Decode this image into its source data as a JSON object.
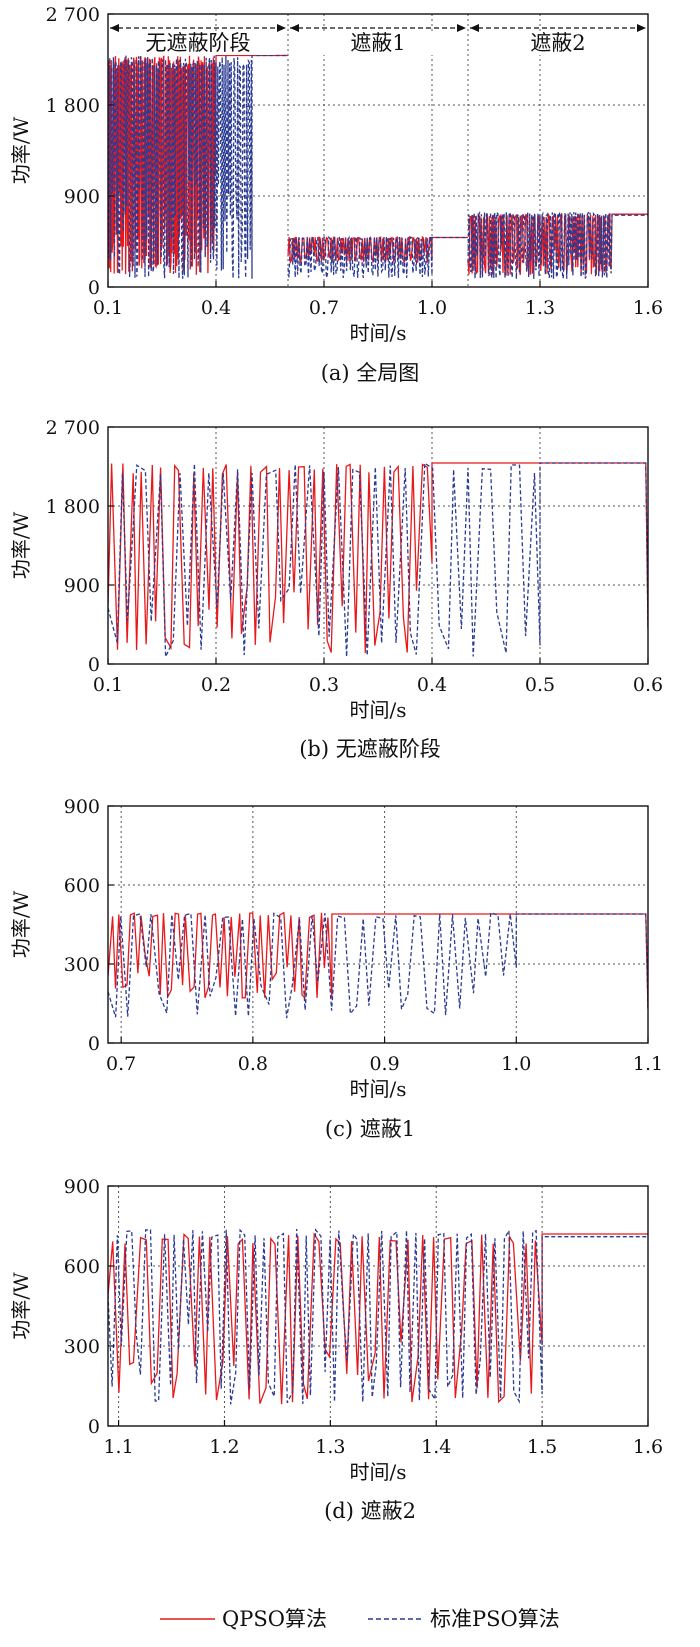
{
  "figure": {
    "legend": {
      "entries": [
        "QPSO算法",
        "标准PSO算法"
      ],
      "placement": "bottom-center"
    },
    "colors": {
      "qpso": "#e8191b",
      "pso": "#2b3a92",
      "grid": "#555555",
      "axis": "#111111"
    }
  },
  "chart_data": [
    {
      "type": "line",
      "caption": "(a) 全局图",
      "xlabel": "时间/s",
      "ylabel": "功率/W",
      "xlim": [
        0.1,
        1.6
      ],
      "ylim": [
        0,
        2700
      ],
      "xticks": [
        0.1,
        0.4,
        0.7,
        1.0,
        1.3,
        1.6
      ],
      "xtick_labels": [
        "0.1",
        "0.4",
        "0.7",
        "1.0",
        "1.3",
        "1.6"
      ],
      "yticks": [
        0,
        900,
        1800,
        2700
      ],
      "ytick_labels": [
        "0",
        "900",
        "1 800",
        "2 700"
      ],
      "grid": true,
      "phases": [
        {
          "label": "无遮蔽阶段",
          "start": 0.1,
          "end": 0.6
        },
        {
          "label": "遮蔽1",
          "start": 0.6,
          "end": 1.1
        },
        {
          "label": "遮蔽2",
          "start": 1.1,
          "end": 1.6
        }
      ],
      "series": [
        {
          "name": "QPSO算法",
          "style": "solid",
          "segments": [
            {
              "x0": 0.1,
              "x1": 0.6,
              "low": 120,
              "high": 2290,
              "converge_at": 0.4,
              "final": 2290,
              "spikes": 80,
              "seed": 11
            },
            {
              "x0": 0.6,
              "x1": 1.1,
              "low": 240,
              "high": 495,
              "converge_at": 1.0,
              "final": 490,
              "spikes": 60,
              "seed": 12
            },
            {
              "x0": 1.1,
              "x1": 1.6,
              "low": 120,
              "high": 720,
              "converge_at": 1.5,
              "final": 720,
              "spikes": 70,
              "seed": 13
            }
          ]
        },
        {
          "name": "标准PSO算法",
          "style": "dashed",
          "segments": [
            {
              "x0": 0.1,
              "x1": 0.6,
              "low": 80,
              "high": 2290,
              "converge_at": 0.5,
              "final": 2290,
              "spikes": 80,
              "seed": 21
            },
            {
              "x0": 0.6,
              "x1": 1.1,
              "low": 90,
              "high": 495,
              "converge_at": 1.0,
              "final": 490,
              "spikes": 60,
              "seed": 22
            },
            {
              "x0": 1.1,
              "x1": 1.6,
              "low": 80,
              "high": 740,
              "converge_at": 1.5,
              "final": 710,
              "spikes": 70,
              "seed": 23
            }
          ]
        }
      ]
    },
    {
      "type": "line",
      "caption": "(b) 无遮蔽阶段",
      "xlabel": "时间/s",
      "ylabel": "功率/W",
      "xlim": [
        0.1,
        0.6
      ],
      "ylim": [
        0,
        2700
      ],
      "xticks": [
        0.1,
        0.2,
        0.3,
        0.4,
        0.5,
        0.6
      ],
      "xtick_labels": [
        "0.1",
        "0.2",
        "0.3",
        "0.4",
        "0.5",
        "0.6"
      ],
      "yticks": [
        0,
        900,
        1800,
        2700
      ],
      "ytick_labels": [
        "0",
        "900",
        "1 800",
        "2 700"
      ],
      "grid": true,
      "series": [
        {
          "name": "QPSO算法",
          "style": "solid",
          "segments": [
            {
              "x0": 0.1,
              "x1": 0.6,
              "low": 120,
              "high": 2290,
              "converge_at": 0.4,
              "final": 2290,
              "spikes": 34,
              "seed": 31,
              "end_drop": 400
            }
          ]
        },
        {
          "name": "标准PSO算法",
          "style": "dashed",
          "segments": [
            {
              "x0": 0.1,
              "x1": 0.6,
              "low": 80,
              "high": 2290,
              "converge_at": 0.5,
              "final": 2290,
              "spikes": 30,
              "seed": 41,
              "end_drop": 400
            }
          ]
        }
      ]
    },
    {
      "type": "line",
      "caption": "(c) 遮蔽1",
      "xlabel": "时间/s",
      "ylabel": "功率/W",
      "xlim": [
        0.69,
        1.1
      ],
      "ylim": [
        0,
        900
      ],
      "xticks": [
        0.7,
        0.8,
        0.9,
        1.0,
        1.1
      ],
      "xtick_labels": [
        "0.7",
        "0.8",
        "0.9",
        "1.0",
        "1.1"
      ],
      "yticks": [
        0,
        300,
        600,
        900
      ],
      "ytick_labels": [
        "0",
        "300",
        "600",
        "900"
      ],
      "grid": true,
      "series": [
        {
          "name": "QPSO算法",
          "style": "solid",
          "segments": [
            {
              "x0": 0.69,
              "x1": 1.1,
              "low": 170,
              "high": 495,
              "converge_at": 0.86,
              "final": 490,
              "spikes": 30,
              "seed": 51,
              "end_drop": 130
            }
          ]
        },
        {
          "name": "标准PSO算法",
          "style": "dashed",
          "segments": [
            {
              "x0": 0.69,
              "x1": 1.1,
              "low": 90,
              "high": 495,
              "converge_at": 1.0,
              "final": 490,
              "spikes": 32,
              "seed": 61,
              "end_drop": 130
            }
          ]
        }
      ]
    },
    {
      "type": "line",
      "caption": "(d) 遮蔽2",
      "xlabel": "时间/s",
      "ylabel": "功率/W",
      "xlim": [
        1.09,
        1.6
      ],
      "ylim": [
        0,
        900
      ],
      "xticks": [
        1.1,
        1.2,
        1.3,
        1.4,
        1.5,
        1.6
      ],
      "xtick_labels": [
        "1.1",
        "1.2",
        "1.3",
        "1.4",
        "1.5",
        "1.6"
      ],
      "yticks": [
        0,
        300,
        600,
        900
      ],
      "ytick_labels": [
        "0",
        "300",
        "600",
        "900"
      ],
      "grid": true,
      "series": [
        {
          "name": "QPSO算法",
          "style": "solid",
          "segments": [
            {
              "x0": 1.09,
              "x1": 1.6,
              "low": 80,
              "high": 720,
              "converge_at": 1.5,
              "final": 720,
              "spikes": 40,
              "seed": 71,
              "start": 490
            }
          ]
        },
        {
          "name": "标准PSO算法",
          "style": "dashed",
          "segments": [
            {
              "x0": 1.09,
              "x1": 1.6,
              "low": 80,
              "high": 740,
              "converge_at": 1.5,
              "final": 710,
              "spikes": 46,
              "seed": 81,
              "start": 490
            }
          ]
        }
      ]
    }
  ]
}
